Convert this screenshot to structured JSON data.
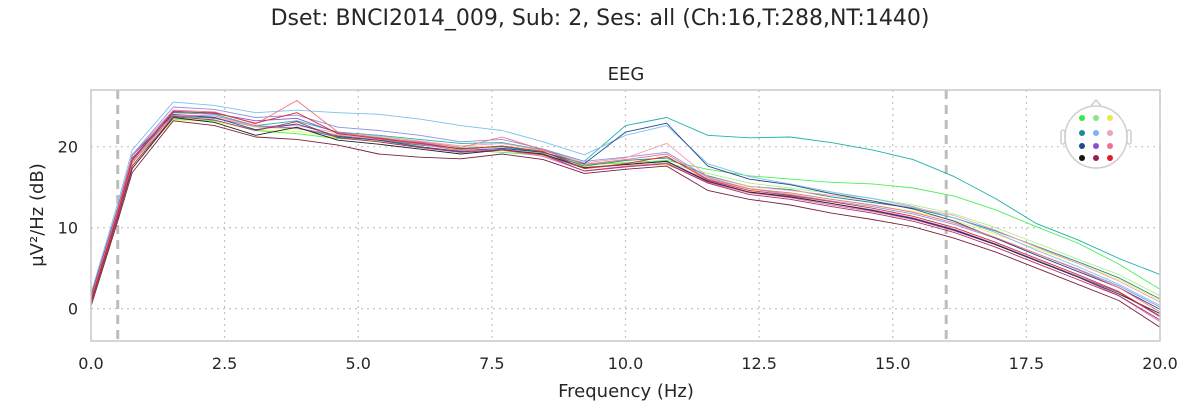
{
  "figure": {
    "suptitle": "Dset: BNCI2014_009, Sub: 2, Ses: all (Ch:16,T:288,NT:1440)"
  },
  "chart_data": {
    "type": "line",
    "title": "EEG",
    "xlabel": "Frequency (Hz)",
    "ylabel": "µV²/Hz (dB)",
    "xlim": [
      0,
      20
    ],
    "ylim": [
      -4,
      27
    ],
    "x_ticks": [
      0,
      2.5,
      5,
      7.5,
      10,
      12.5,
      15,
      17.5,
      20
    ],
    "x_tick_labels": [
      "0.0",
      "2.5",
      "5.0",
      "7.5",
      "10.0",
      "12.5",
      "15.0",
      "17.5",
      "20.0"
    ],
    "y_ticks": [
      0,
      10,
      20
    ],
    "y_tick_labels": [
      "0",
      "10",
      "20"
    ],
    "grid": true,
    "vlines": [
      0.5,
      16.0
    ],
    "x": [
      0,
      0.5,
      0.77,
      1.54,
      2.31,
      3.08,
      3.85,
      4.62,
      5.38,
      6.15,
      6.92,
      7.69,
      8.46,
      9.23,
      10.0,
      10.77,
      11.54,
      12.31,
      13.08,
      13.85,
      14.62,
      15.38,
      16.15,
      16.92,
      17.69,
      18.46,
      19.23,
      20.0
    ],
    "series": [
      {
        "color": "#20b2aa",
        "values": [
          1.5,
          12.0,
          18.4,
          24.2,
          24.0,
          22.6,
          23.2,
          21.8,
          21.4,
          20.9,
          20.4,
          20.5,
          19.6,
          18.2,
          22.6,
          23.6,
          21.4,
          21.1,
          21.2,
          20.5,
          19.6,
          18.4,
          16.3,
          13.6,
          10.5,
          8.5,
          6.2,
          4.2
        ]
      },
      {
        "color": "#4dee5a",
        "values": [
          1.2,
          11.5,
          18.1,
          23.4,
          23.2,
          22.0,
          21.6,
          21.0,
          20.8,
          20.3,
          19.6,
          19.3,
          18.9,
          17.8,
          18.0,
          18.3,
          17.2,
          16.4,
          16.0,
          15.6,
          15.4,
          14.9,
          13.9,
          12.2,
          10.1,
          8.1,
          5.5,
          2.4
        ]
      },
      {
        "color": "#b4ee8a",
        "values": [
          1.3,
          11.8,
          18.3,
          23.8,
          23.6,
          22.4,
          22.2,
          21.5,
          21.2,
          20.6,
          20.1,
          19.8,
          19.2,
          17.9,
          18.1,
          18.0,
          16.7,
          15.5,
          14.9,
          14.2,
          13.6,
          12.8,
          11.7,
          10.0,
          8.1,
          6.1,
          4.2,
          1.6
        ]
      },
      {
        "color": "#f0f060",
        "values": [
          1.0,
          11.4,
          17.8,
          23.3,
          23.1,
          22.1,
          21.9,
          21.1,
          20.7,
          20.2,
          19.7,
          19.5,
          18.9,
          17.5,
          17.8,
          17.7,
          16.1,
          14.9,
          14.2,
          13.5,
          12.8,
          12.0,
          10.9,
          9.2,
          7.4,
          5.6,
          3.6,
          1.0
        ]
      },
      {
        "color": "#1e8c8c",
        "values": [
          1.4,
          12.1,
          18.6,
          23.8,
          23.5,
          22.5,
          22.3,
          21.2,
          20.8,
          20.2,
          19.8,
          20.0,
          19.3,
          17.6,
          18.3,
          18.6,
          16.4,
          15.1,
          14.7,
          13.8,
          13.1,
          12.4,
          11.2,
          9.6,
          7.7,
          5.8,
          3.8,
          1.2
        ]
      },
      {
        "color": "#7ec0ee",
        "values": [
          1.9,
          13.0,
          19.6,
          25.5,
          25.1,
          24.2,
          24.5,
          24.2,
          24.0,
          23.4,
          22.6,
          22.0,
          20.6,
          19.0,
          21.4,
          22.6,
          17.9,
          16.3,
          15.4,
          14.4,
          13.6,
          12.6,
          11.2,
          9.4,
          7.2,
          5.2,
          3.0,
          0.4
        ]
      },
      {
        "color": "#9090e8",
        "values": [
          1.6,
          12.5,
          19.0,
          24.9,
          24.6,
          23.6,
          23.9,
          22.4,
          22.0,
          21.4,
          20.6,
          20.9,
          19.7,
          18.2,
          18.7,
          19.3,
          16.2,
          14.8,
          14.1,
          13.3,
          12.6,
          11.7,
          10.4,
          8.7,
          6.8,
          4.9,
          2.8,
          0.2
        ]
      },
      {
        "color": "#f4a0b4",
        "values": [
          1.1,
          11.6,
          18.2,
          23.9,
          23.6,
          22.5,
          22.6,
          21.7,
          21.3,
          20.7,
          20.1,
          20.4,
          19.5,
          18.0,
          18.6,
          20.4,
          16.3,
          15.1,
          14.6,
          14.0,
          13.3,
          12.5,
          11.5,
          9.7,
          7.6,
          5.6,
          3.4,
          0.8
        ]
      },
      {
        "color": "#234a8a",
        "values": [
          1.5,
          12.3,
          18.9,
          24.0,
          23.6,
          22.1,
          22.8,
          21.3,
          20.8,
          20.0,
          19.4,
          19.8,
          19.3,
          17.9,
          21.8,
          22.9,
          17.6,
          16.0,
          15.3,
          14.2,
          13.3,
          12.3,
          10.8,
          8.7,
          6.6,
          4.6,
          2.6,
          -0.1
        ]
      },
      {
        "color": "#8a50d8",
        "values": [
          1.2,
          11.9,
          18.5,
          24.4,
          24.1,
          23.2,
          23.5,
          21.7,
          21.1,
          20.5,
          19.7,
          19.7,
          19.0,
          17.3,
          17.8,
          18.2,
          15.8,
          14.4,
          13.9,
          13.0,
          12.2,
          11.2,
          9.8,
          8.0,
          6.0,
          4.0,
          2.0,
          -1.0
        ]
      },
      {
        "color": "#e070c0",
        "values": [
          0.9,
          11.4,
          18.0,
          23.9,
          23.8,
          22.6,
          22.3,
          21.4,
          20.9,
          20.3,
          19.5,
          19.6,
          18.8,
          17.0,
          17.6,
          18.0,
          15.6,
          14.3,
          13.7,
          12.8,
          12.0,
          11.0,
          9.6,
          7.9,
          5.9,
          3.9,
          1.6,
          -1.6
        ]
      },
      {
        "color": "#f07080",
        "values": [
          1.3,
          12.2,
          18.9,
          24.5,
          24.3,
          22.8,
          25.7,
          21.8,
          21.0,
          20.6,
          19.9,
          21.2,
          19.6,
          17.8,
          18.4,
          19.1,
          16.0,
          14.8,
          14.3,
          13.5,
          12.8,
          11.9,
          10.6,
          8.8,
          6.8,
          4.8,
          2.6,
          -0.4
        ]
      },
      {
        "color": "#222222",
        "values": [
          0.7,
          11.2,
          17.3,
          23.6,
          23.0,
          21.4,
          22.4,
          20.8,
          20.3,
          19.7,
          19.1,
          19.6,
          19.1,
          17.4,
          17.8,
          18.2,
          15.7,
          14.4,
          13.8,
          13.0,
          12.1,
          11.1,
          9.7,
          7.9,
          5.9,
          3.9,
          1.8,
          -0.6
        ]
      },
      {
        "color": "#b03060",
        "values": [
          0.8,
          11.3,
          17.6,
          23.7,
          23.3,
          22.0,
          23.1,
          21.1,
          20.6,
          19.9,
          19.3,
          19.6,
          19.0,
          17.0,
          17.5,
          17.9,
          15.5,
          14.1,
          13.5,
          12.6,
          11.8,
          10.8,
          9.4,
          7.6,
          5.6,
          3.6,
          1.6,
          -1.4
        ]
      },
      {
        "color": "#d8301e",
        "values": [
          1.0,
          11.7,
          18.3,
          24.3,
          24.2,
          22.9,
          24.2,
          21.6,
          21.0,
          20.4,
          19.7,
          20.1,
          19.4,
          17.3,
          17.9,
          18.8,
          15.9,
          14.6,
          14.0,
          13.2,
          12.4,
          11.4,
          10.0,
          8.2,
          6.2,
          4.2,
          2.1,
          -0.9
        ]
      },
      {
        "color": "#7a2240",
        "values": [
          0.3,
          10.8,
          16.8,
          23.2,
          22.6,
          21.2,
          20.9,
          20.2,
          19.1,
          18.7,
          18.5,
          19.1,
          18.4,
          16.7,
          17.2,
          17.6,
          14.6,
          13.5,
          12.8,
          11.8,
          11.0,
          10.1,
          8.7,
          7.0,
          5.0,
          3.0,
          1.0,
          -2.3
        ]
      }
    ],
    "sensor_colors": [
      "#3ce83c",
      "#88e888",
      "#e8e850",
      "#1e8c8c",
      "#80b0f0",
      "#f0a0c8",
      "#234a8a",
      "#8a50d8",
      "#f07090",
      "#111111",
      "#9a2050",
      "#e02020",
      "#50c090",
      "#a0d8e0",
      "#7070e0",
      "#e060c0"
    ]
  }
}
